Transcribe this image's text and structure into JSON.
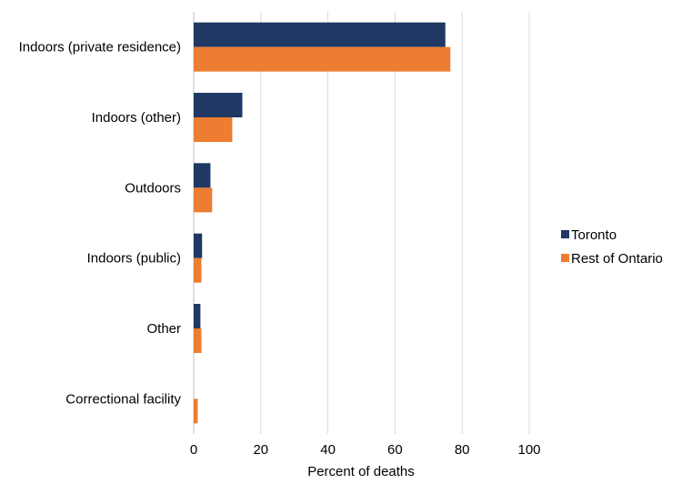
{
  "chart_data": {
    "type": "bar",
    "orientation": "horizontal",
    "categories": [
      "Indoors (private residence)",
      "Indoors (other)",
      "Outdoors",
      "Indoors (public)",
      "Other",
      "Correctional facility"
    ],
    "series": [
      {
        "name": "Toronto",
        "color": "#1f3864",
        "values": [
          75,
          14.5,
          5,
          2.5,
          2,
          0
        ]
      },
      {
        "name": "Rest of Ontario",
        "color": "#ed7d31",
        "values": [
          76.5,
          11.5,
          5.5,
          2.3,
          2.3,
          1.2
        ]
      }
    ],
    "xlabel": "Percent of deaths",
    "ylabel": "",
    "xlim": [
      0,
      100
    ],
    "xticks": [
      "0",
      "20",
      "40",
      "60",
      "80",
      "100"
    ],
    "grid": true,
    "legend_position": "right"
  }
}
